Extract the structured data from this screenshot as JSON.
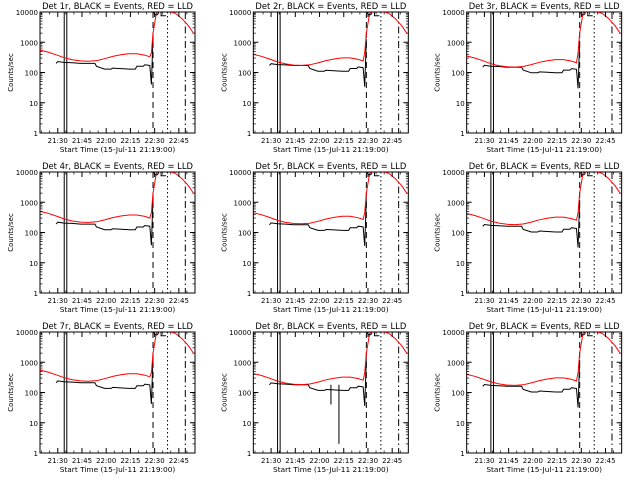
{
  "panels": [
    {
      "title": "Det 1r, BLACK = Events, RED = LLD"
    },
    {
      "title": "Det 2r, BLACK = Events, RED = LLD"
    },
    {
      "title": "Det 3r, BLACK = Events, RED = LLD"
    },
    {
      "title": "Det 4r, BLACK = Events, RED = LLD"
    },
    {
      "title": "Det 5r, BLACK = Events, RED = LLD"
    },
    {
      "title": "Det 6r, BLACK = Events, RED = LLD"
    },
    {
      "title": "Det 7r, BLACK = Events, RED = LLD"
    },
    {
      "title": "Det 8r, BLACK = Events, RED = LLD"
    },
    {
      "title": "Det 9r, BLACK = Events, RED = LLD"
    }
  ],
  "colors": {
    "events": "#000000",
    "lld": "#ff0000",
    "axes": "#000000"
  },
  "chart_data": {
    "type": "line",
    "layout": "3x3 grid",
    "xlabel": "Start Time (15-Jul-11 21:19:00)",
    "ylabel": "Counts/sec",
    "x_ticks": [
      "21:30",
      "21:45",
      "22:00",
      "22:15",
      "22:30",
      "22:45"
    ],
    "x_tick_minutes": [
      11,
      26,
      41,
      56,
      71,
      86
    ],
    "xlim_minutes": [
      0,
      96
    ],
    "y_scale": "log",
    "ylim": [
      1,
      10000
    ],
    "y_ticks": [
      "1",
      "10",
      "100",
      "1000",
      "10000"
    ],
    "vertical_markers": [
      {
        "minute": 15,
        "style": "solid"
      },
      {
        "minute": 16.6,
        "style": "solid"
      },
      {
        "minute": 70,
        "style": "dashed"
      },
      {
        "minute": 79,
        "style": "dotted"
      },
      {
        "minute": 90,
        "style": "dash-dot"
      }
    ],
    "lld_series": {
      "name": "RED = LLD",
      "x": [
        0,
        5,
        10,
        15,
        20,
        25,
        30,
        35,
        40,
        45,
        50,
        55,
        60,
        65,
        68,
        69,
        70,
        72,
        75,
        78,
        80,
        84,
        88,
        92,
        95
      ],
      "y": [
        500,
        430,
        350,
        280,
        240,
        220,
        215,
        225,
        260,
        310,
        350,
        380,
        380,
        340,
        300,
        450,
        2000,
        9000,
        11000,
        10800,
        10300,
        9000,
        6000,
        3500,
        2000
      ]
    },
    "events_series": {
      "name": "BLACK = Events",
      "x": [
        10,
        11,
        15,
        20,
        25,
        30,
        34,
        35,
        40,
        44,
        45,
        50,
        55,
        59,
        60,
        64,
        65,
        68,
        69,
        70
      ],
      "y": [
        200,
        230,
        215,
        210,
        200,
        200,
        200,
        160,
        130,
        130,
        140,
        135,
        130,
        130,
        160,
        160,
        180,
        170,
        40,
        1500
      ]
    },
    "panel_variants": [
      {
        "det": "1r",
        "events_scale": 1.0,
        "lld_scale": 1.1,
        "dip_minute": null
      },
      {
        "det": "2r",
        "events_scale": 0.85,
        "lld_scale": 0.8,
        "dip_minute": null
      },
      {
        "det": "3r",
        "events_scale": 0.75,
        "lld_scale": 0.7,
        "dip_minute": null
      },
      {
        "det": "4r",
        "events_scale": 0.95,
        "lld_scale": 1.0,
        "dip_minute": null
      },
      {
        "det": "5r",
        "events_scale": 0.9,
        "lld_scale": 0.9,
        "dip_minute": null
      },
      {
        "det": "6r",
        "events_scale": 0.8,
        "lld_scale": 0.85,
        "dip_minute": null
      },
      {
        "det": "7r",
        "events_scale": 1.05,
        "lld_scale": 1.1,
        "dip_minute": null
      },
      {
        "det": "8r",
        "events_scale": 0.9,
        "lld_scale": 0.85,
        "dip_minute": 53
      },
      {
        "det": "9r",
        "events_scale": 0.8,
        "lld_scale": 0.8,
        "dip_minute": null
      }
    ]
  }
}
